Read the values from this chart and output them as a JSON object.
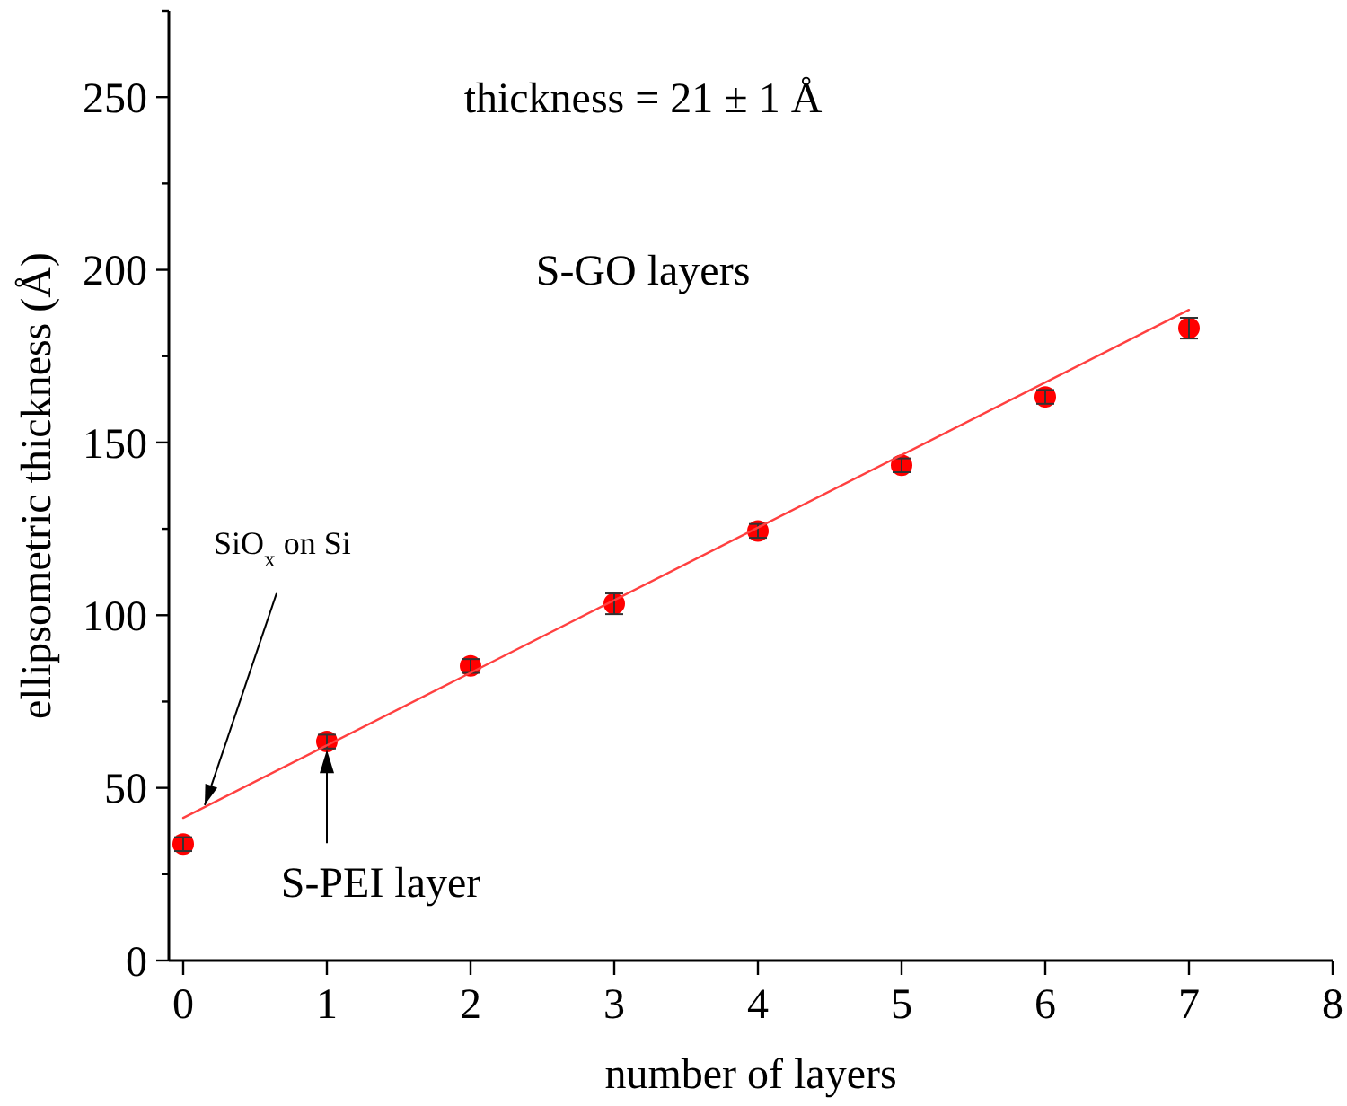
{
  "chart_data": {
    "type": "scatter",
    "xlabel": "number of layers",
    "ylabel": "ellipsometric thickness (Å)",
    "annotations": [
      "thickness = 21 ± 1 Å",
      "S-GO layers",
      {
        "text": "SiO$_{x}$ on Si",
        "x": 0.15,
        "y": 45
      },
      {
        "text": "S-PEI layer",
        "x": 1,
        "y": 61
      }
    ],
    "xlim": [
      -0.1,
      8
    ],
    "xticks": [
      0,
      1,
      2,
      3,
      4,
      5,
      6,
      7,
      8
    ],
    "ylim": [
      0,
      275
    ],
    "yticks": [
      0,
      {
        "value": 25,
        "label": null
      },
      50,
      {
        "value": 75,
        "label": null
      },
      100,
      {
        "value": 125,
        "label": null
      },
      150,
      {
        "value": 175,
        "label": null
      },
      200,
      {
        "value": 225,
        "label": null
      },
      250,
      {
        "value": 275,
        "label": null
      }
    ],
    "grid": false,
    "series": [
      {
        "color": "#ff0000",
        "marker": "circle",
        "x": [
          0,
          1,
          2,
          3,
          4,
          5,
          6,
          7
        ],
        "values": [
          33.7,
          63.4,
          85.3,
          103.3,
          124.4,
          143.4,
          163.2,
          183.1
        ],
        "errors": [
          2,
          2,
          2,
          3,
          2,
          2,
          2,
          3
        ]
      },
      {
        "type": "line",
        "color": "#ff4040",
        "line_style": "solid",
        "x": [
          0,
          7
        ],
        "values": [
          41.3,
          188.4
        ]
      }
    ]
  }
}
